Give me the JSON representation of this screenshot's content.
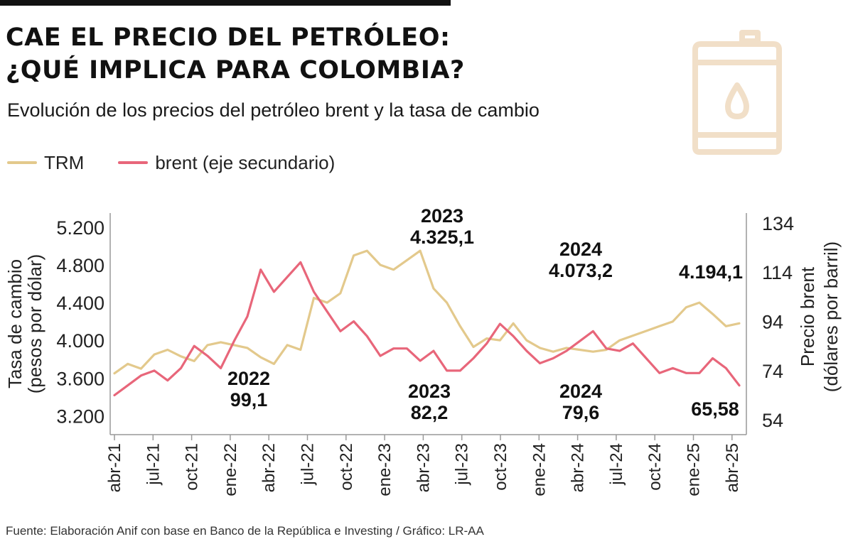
{
  "header": {
    "title_line1": "CAE EL PRECIO DEL PETRÓLEO:",
    "title_line2": "¿QUÉ IMPLICA PARA COLOMBIA?",
    "subtitle": "Evolución de los precios del petróleo brent y la tasa de cambio"
  },
  "footer": {
    "source": "Fuente: Elaboración Anif con base en Banco de la República e Investing / Gráfico: LR-AA"
  },
  "colors": {
    "trm": "#e3c98c",
    "brent": "#e8667a",
    "axis": "#999999",
    "icon": "#f1dfc8"
  },
  "icon": "oil-barrel-icon",
  "chart_data": {
    "type": "line",
    "title": "Evolución de los precios del petróleo brent y la tasa de cambio",
    "ylabel": "Tasa de cambio (pesos por dólar)",
    "ylabel_line1": "Tasa de cambio",
    "ylabel_line2": "(pesos por dólar)",
    "y2label": "Precio brent (dólares por barril)",
    "y2label_line1": "Precio brent",
    "y2label_line2": "(dólares por barril)",
    "ylim": [
      3000,
      5350
    ],
    "y2lim": [
      48,
      138
    ],
    "yticks": [
      "5.200",
      "4.800",
      "4.400",
      "4.000",
      "3.600",
      "3.200"
    ],
    "ytick_values": [
      5200,
      4800,
      4400,
      4000,
      3600,
      3200
    ],
    "y2ticks": [
      "134",
      "114",
      "94",
      "74",
      "54"
    ],
    "y2tick_values": [
      134,
      114,
      94,
      74,
      54
    ],
    "xticks": [
      "abr-21",
      "jul-21",
      "oct-21",
      "ene-22",
      "abr-22",
      "jul-22",
      "oct-22",
      "ene-23",
      "abr-23",
      "jul-23",
      "oct-23",
      "ene-24",
      "abr-24",
      "jul-24",
      "oct-24",
      "ene-25",
      "abr-25"
    ],
    "grid": false,
    "legend_position": "top-left",
    "series": [
      {
        "name": "TRM",
        "axis": "left",
        "x": [
          "2021-04",
          "2021-05",
          "2021-06",
          "2021-07",
          "2021-08",
          "2021-09",
          "2021-10",
          "2021-11",
          "2021-12",
          "2022-01",
          "2022-02",
          "2022-03",
          "2022-04",
          "2022-05",
          "2022-06",
          "2022-07",
          "2022-08",
          "2022-09",
          "2022-10",
          "2022-11",
          "2022-12",
          "2023-01",
          "2023-02",
          "2023-03",
          "2023-04",
          "2023-05",
          "2023-06",
          "2023-07",
          "2023-08",
          "2023-09",
          "2023-10",
          "2023-11",
          "2023-12",
          "2024-01",
          "2024-02",
          "2024-03",
          "2024-04",
          "2024-05",
          "2024-06",
          "2024-07",
          "2024-08",
          "2024-09",
          "2024-10",
          "2024-11",
          "2024-12",
          "2025-01",
          "2025-02",
          "2025-03"
        ],
        "values": [
          3650,
          3750,
          3700,
          3850,
          3900,
          3830,
          3780,
          3950,
          3980,
          3950,
          3920,
          3820,
          3750,
          3950,
          3900,
          4450,
          4400,
          4500,
          4900,
          4950,
          4800,
          4750,
          4850,
          4950,
          4550,
          4400,
          4150,
          3930,
          4020,
          4000,
          4180,
          4000,
          3920,
          3880,
          3920,
          3900,
          3880,
          3900,
          4000,
          4050,
          4100,
          4150,
          4200,
          4350,
          4400,
          4280,
          4150,
          4180
        ]
      },
      {
        "name": "brent (eje secundario)",
        "axis": "right",
        "x": [
          "2021-04",
          "2021-05",
          "2021-06",
          "2021-07",
          "2021-08",
          "2021-09",
          "2021-10",
          "2021-11",
          "2021-12",
          "2022-01",
          "2022-02",
          "2022-03",
          "2022-04",
          "2022-05",
          "2022-06",
          "2022-07",
          "2022-08",
          "2022-09",
          "2022-10",
          "2022-11",
          "2022-12",
          "2023-01",
          "2023-02",
          "2023-03",
          "2023-04",
          "2023-05",
          "2023-06",
          "2023-07",
          "2023-08",
          "2023-09",
          "2023-10",
          "2023-11",
          "2023-12",
          "2024-01",
          "2024-02",
          "2024-03",
          "2024-04",
          "2024-05",
          "2024-06",
          "2024-07",
          "2024-08",
          "2024-09",
          "2024-10",
          "2024-11",
          "2024-12",
          "2025-01",
          "2025-02",
          "2025-03"
        ],
        "values": [
          64,
          68,
          72,
          74,
          70,
          75,
          84,
          80,
          75,
          86,
          96,
          115,
          106,
          112,
          118,
          106,
          98,
          90,
          94,
          88,
          80,
          83,
          83,
          78,
          82,
          74,
          74,
          79,
          85,
          93,
          88,
          82,
          77,
          79,
          82,
          86,
          90,
          83,
          82,
          85,
          79,
          73,
          75,
          73,
          73,
          79,
          75,
          68
        ]
      }
    ],
    "annotations": [
      {
        "year": "2022",
        "value": "99,1",
        "series": "brent (eje secundario)"
      },
      {
        "year": "2023",
        "value": "4.325,1",
        "series": "TRM"
      },
      {
        "year": "2023",
        "value": "82,2",
        "series": "brent (eje secundario)"
      },
      {
        "year": "2024",
        "value": "4.073,2",
        "series": "TRM"
      },
      {
        "year": "2024",
        "value": "79,6",
        "series": "brent (eje secundario)"
      },
      {
        "year": "",
        "value": "4.194,1",
        "series": "TRM"
      },
      {
        "year": "",
        "value": "65,58",
        "series": "brent (eje secundario)"
      }
    ]
  }
}
